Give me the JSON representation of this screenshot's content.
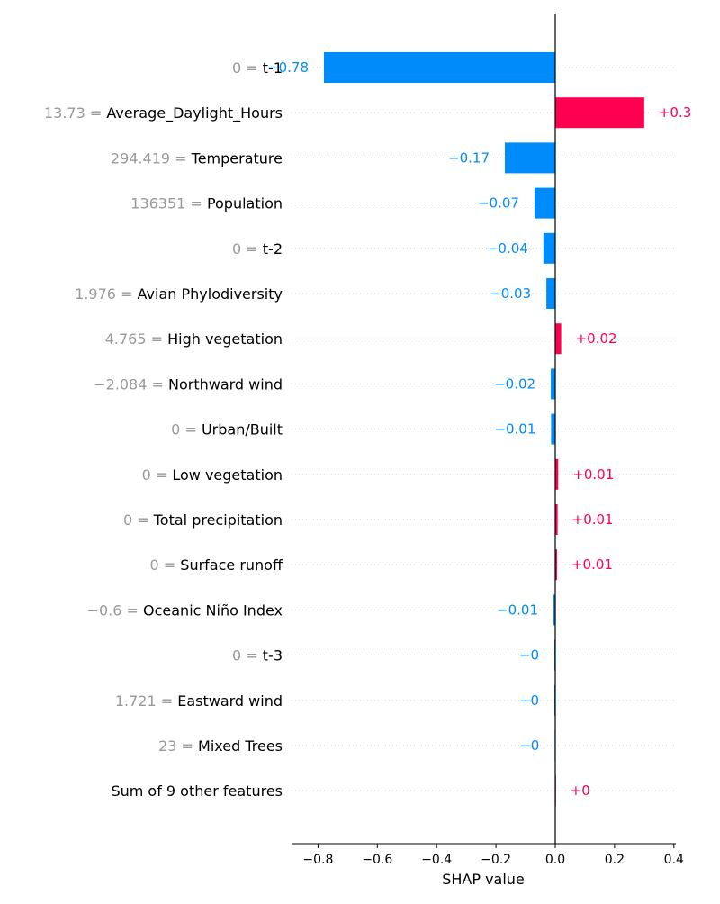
{
  "chart_data": {
    "type": "bar",
    "xlabel": "SHAP value",
    "xlim": [
      -0.89,
      0.41
    ],
    "xticks": [
      -0.8,
      -0.6,
      -0.4,
      -0.2,
      0.0,
      0.2,
      0.4
    ],
    "xtick_labels": [
      "−0.8",
      "−0.6",
      "−0.4",
      "−0.2",
      "0.0",
      "0.2",
      "0.4"
    ],
    "grid": "dotted horizontal row lines",
    "colors": {
      "positive": "#ff0051",
      "negative": "#008bfb",
      "feature_value": "#999999",
      "feature_name": "#000000"
    },
    "rows": [
      {
        "value_text": "0 =",
        "feature": "t-1",
        "shap": -0.78,
        "label": "−0.78"
      },
      {
        "value_text": "13.73 =",
        "feature": "Average_Daylight_Hours",
        "shap": 0.3,
        "label": "+0.3"
      },
      {
        "value_text": "294.419 =",
        "feature": "Temperature",
        "shap": -0.17,
        "label": "−0.17"
      },
      {
        "value_text": "136351 =",
        "feature": "Population",
        "shap": -0.07,
        "label": "−0.07"
      },
      {
        "value_text": "0 =",
        "feature": "t-2",
        "shap": -0.04,
        "label": "−0.04"
      },
      {
        "value_text": "1.976 =",
        "feature": "Avian Phylodiversity",
        "shap": -0.03,
        "label": "−0.03"
      },
      {
        "value_text": "4.765 =",
        "feature": "High vegetation",
        "shap": 0.02,
        "label": "+0.02"
      },
      {
        "value_text": "−2.084 =",
        "feature": "Northward wind",
        "shap": -0.015,
        "label": "−0.02"
      },
      {
        "value_text": "0 =",
        "feature": "Urban/Built",
        "shap": -0.014,
        "label": "−0.01"
      },
      {
        "value_text": "0 =",
        "feature": "Low vegetation",
        "shap": 0.01,
        "label": "+0.01"
      },
      {
        "value_text": "0 =",
        "feature": "Total precipitation",
        "shap": 0.008,
        "label": "+0.01"
      },
      {
        "value_text": "0 =",
        "feature": "Surface runoff",
        "shap": 0.006,
        "label": "+0.01"
      },
      {
        "value_text": "−0.6 =",
        "feature": "Oceanic Niño Index",
        "shap": -0.006,
        "label": "−0.01"
      },
      {
        "value_text": "0 =",
        "feature": "t-3",
        "shap": -0.003,
        "label": "−0"
      },
      {
        "value_text": "1.721 =",
        "feature": "Eastward wind",
        "shap": -0.003,
        "label": "−0"
      },
      {
        "value_text": "23 =",
        "feature": "Mixed Trees",
        "shap": -0.002,
        "label": "−0"
      },
      {
        "value_text": "",
        "feature": "Sum of 9 other features",
        "shap": 0.002,
        "label": "+0"
      }
    ]
  }
}
